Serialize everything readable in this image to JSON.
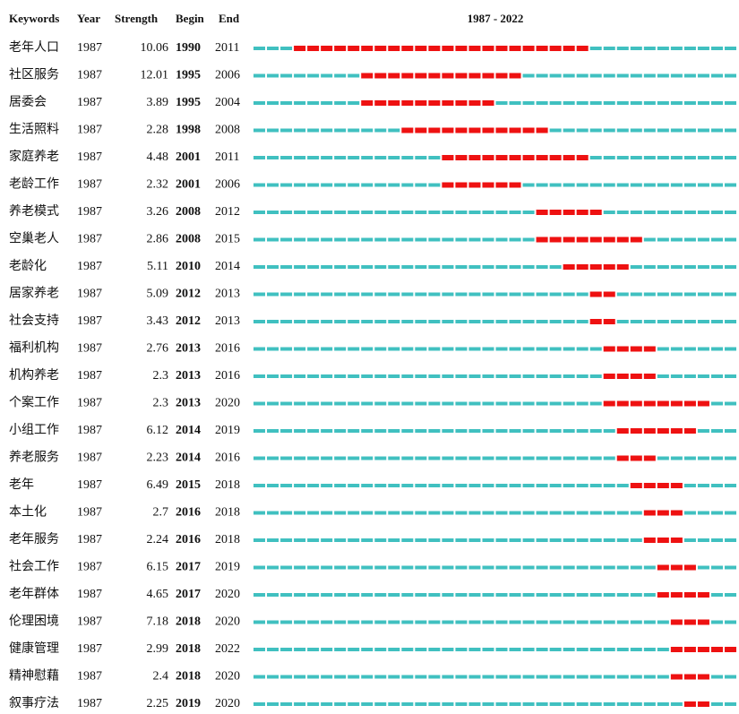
{
  "chart_data": {
    "type": "table",
    "title": "",
    "headers": {
      "keywords": "Keywords",
      "year": "Year",
      "strength": "Strength",
      "begin": "Begin",
      "end": "End",
      "range": "1987 - 2022"
    },
    "timeline": {
      "start": 1987,
      "end": 2022
    },
    "colors": {
      "background_segment": "#40c0c0",
      "burst_segment": "#ee1111"
    },
    "rows": [
      {
        "keyword": "老年人口",
        "year": "1987",
        "strength": "10.06",
        "begin": "1990",
        "end": "2011"
      },
      {
        "keyword": "社区服务",
        "year": "1987",
        "strength": "12.01",
        "begin": "1995",
        "end": "2006"
      },
      {
        "keyword": "居委会",
        "year": "1987",
        "strength": "3.89",
        "begin": "1995",
        "end": "2004"
      },
      {
        "keyword": "生活照料",
        "year": "1987",
        "strength": "2.28",
        "begin": "1998",
        "end": "2008"
      },
      {
        "keyword": "家庭养老",
        "year": "1987",
        "strength": "4.48",
        "begin": "2001",
        "end": "2011"
      },
      {
        "keyword": "老龄工作",
        "year": "1987",
        "strength": "2.32",
        "begin": "2001",
        "end": "2006"
      },
      {
        "keyword": "养老模式",
        "year": "1987",
        "strength": "3.26",
        "begin": "2008",
        "end": "2012"
      },
      {
        "keyword": "空巢老人",
        "year": "1987",
        "strength": "2.86",
        "begin": "2008",
        "end": "2015"
      },
      {
        "keyword": "老龄化",
        "year": "1987",
        "strength": "5.11",
        "begin": "2010",
        "end": "2014"
      },
      {
        "keyword": "居家养老",
        "year": "1987",
        "strength": "5.09",
        "begin": "2012",
        "end": "2013"
      },
      {
        "keyword": "社会支持",
        "year": "1987",
        "strength": "3.43",
        "begin": "2012",
        "end": "2013"
      },
      {
        "keyword": "福利机构",
        "year": "1987",
        "strength": "2.76",
        "begin": "2013",
        "end": "2016"
      },
      {
        "keyword": "机构养老",
        "year": "1987",
        "strength": "2.3",
        "begin": "2013",
        "end": "2016"
      },
      {
        "keyword": "个案工作",
        "year": "1987",
        "strength": "2.3",
        "begin": "2013",
        "end": "2020"
      },
      {
        "keyword": "小组工作",
        "year": "1987",
        "strength": "6.12",
        "begin": "2014",
        "end": "2019"
      },
      {
        "keyword": "养老服务",
        "year": "1987",
        "strength": "2.23",
        "begin": "2014",
        "end": "2016"
      },
      {
        "keyword": "老年",
        "year": "1987",
        "strength": "6.49",
        "begin": "2015",
        "end": "2018"
      },
      {
        "keyword": "本土化",
        "year": "1987",
        "strength": "2.7",
        "begin": "2016",
        "end": "2018"
      },
      {
        "keyword": "老年服务",
        "year": "1987",
        "strength": "2.24",
        "begin": "2016",
        "end": "2018"
      },
      {
        "keyword": "社会工作",
        "year": "1987",
        "strength": "6.15",
        "begin": "2017",
        "end": "2019"
      },
      {
        "keyword": "老年群体",
        "year": "1987",
        "strength": "4.65",
        "begin": "2017",
        "end": "2020"
      },
      {
        "keyword": "伦理困境",
        "year": "1987",
        "strength": "7.18",
        "begin": "2018",
        "end": "2020"
      },
      {
        "keyword": "健康管理",
        "year": "1987",
        "strength": "2.99",
        "begin": "2018",
        "end": "2022"
      },
      {
        "keyword": "精神慰藉",
        "year": "1987",
        "strength": "2.4",
        "begin": "2018",
        "end": "2020"
      },
      {
        "keyword": "叙事疗法",
        "year": "1987",
        "strength": "2.25",
        "begin": "2019",
        "end": "2020"
      }
    ]
  }
}
